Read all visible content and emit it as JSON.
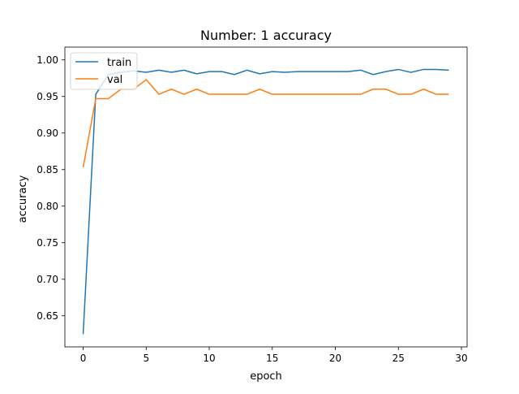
{
  "chart_data": {
    "type": "line",
    "title": "Number: 1 accuracy",
    "xlabel": "epoch",
    "ylabel": "accuracy",
    "xlim": [
      -1.45,
      30.45
    ],
    "ylim": [
      0.6075,
      1.0175
    ],
    "xticks": [
      0,
      5,
      10,
      15,
      20,
      25,
      30
    ],
    "yticks": [
      0.65,
      0.7,
      0.75,
      0.8,
      0.85,
      0.9,
      0.95,
      1.0
    ],
    "ytick_labels": [
      "0.65",
      "0.70",
      "0.75",
      "0.80",
      "0.85",
      "0.90",
      "0.95",
      "1.00"
    ],
    "grid": false,
    "legend": {
      "position": "upper left"
    },
    "x": [
      0,
      1,
      2,
      3,
      4,
      5,
      6,
      7,
      8,
      9,
      10,
      11,
      12,
      13,
      14,
      15,
      16,
      17,
      18,
      19,
      20,
      21,
      22,
      23,
      24,
      25,
      26,
      27,
      28,
      29
    ],
    "series": [
      {
        "name": "train",
        "color": "#1f77b4",
        "values": [
          0.625,
          0.953,
          0.98,
          0.983,
          0.985,
          0.983,
          0.986,
          0.983,
          0.986,
          0.981,
          0.984,
          0.984,
          0.98,
          0.986,
          0.981,
          0.984,
          0.983,
          0.984,
          0.984,
          0.984,
          0.984,
          0.984,
          0.986,
          0.98,
          0.984,
          0.987,
          0.983,
          0.987,
          0.987,
          0.986
        ]
      },
      {
        "name": "val",
        "color": "#ff7f0e",
        "values": [
          0.853,
          0.947,
          0.947,
          0.96,
          0.96,
          0.973,
          0.953,
          0.96,
          0.953,
          0.96,
          0.953,
          0.953,
          0.953,
          0.953,
          0.96,
          0.953,
          0.953,
          0.953,
          0.953,
          0.953,
          0.953,
          0.953,
          0.953,
          0.96,
          0.96,
          0.953,
          0.953,
          0.96,
          0.953,
          0.953
        ]
      }
    ]
  }
}
